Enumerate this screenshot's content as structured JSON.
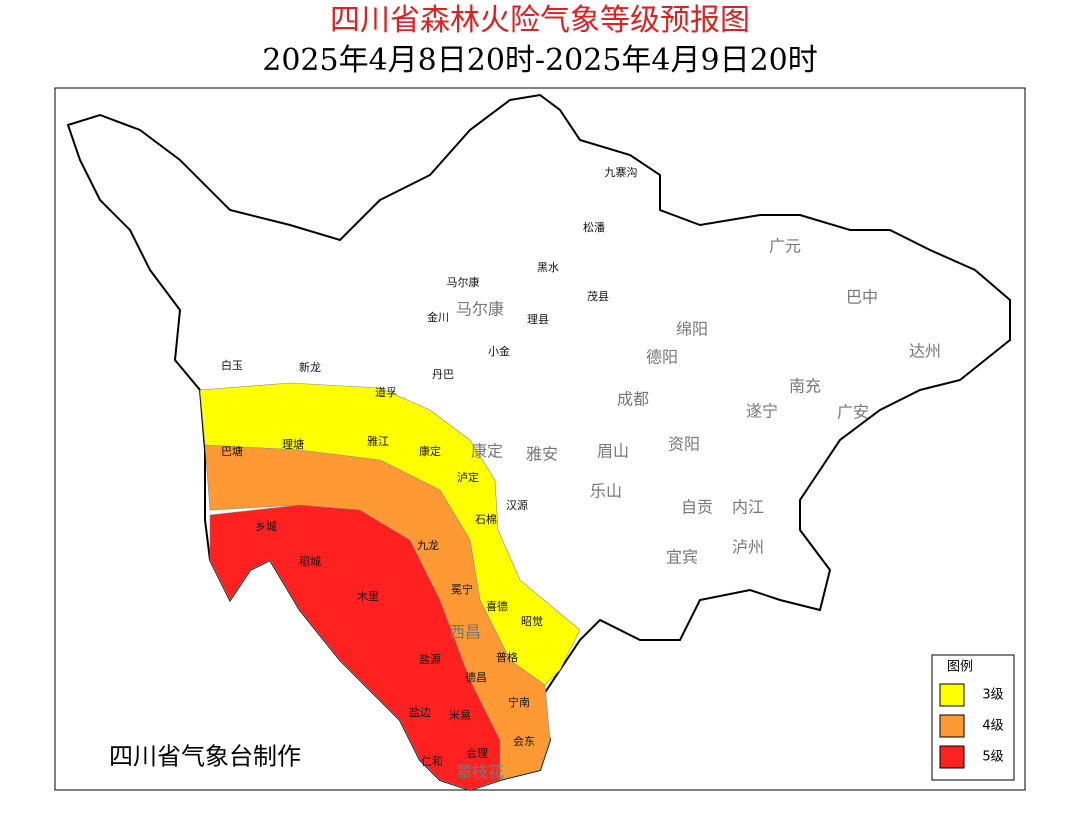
{
  "header": {
    "title": "四川省森林火险气象等级预报图",
    "subtitle": "2025年4月8日20时-2025年4月9日20时"
  },
  "legend": {
    "title": "图例",
    "items": [
      {
        "label": "3级",
        "color": "#ffff00"
      },
      {
        "label": "4级",
        "color": "#ff9933"
      },
      {
        "label": "5级",
        "color": "#ff2020"
      }
    ]
  },
  "cities": [
    "广元",
    "巴中",
    "达州",
    "绵阳",
    "德阳",
    "南充",
    "成都",
    "遂宁",
    "广安",
    "资阳",
    "雅安",
    "眉山",
    "乐山",
    "自贡",
    "内江",
    "宜宾",
    "泸州",
    "马尔康",
    "康定",
    "西昌",
    "攀枝花"
  ],
  "counties": [
    "九寨沟",
    "松潘",
    "马尔康",
    "黑水",
    "茂县",
    "金川",
    "理县",
    "小金",
    "丹巴",
    "道孚",
    "白玉",
    "新龙",
    "巴塘",
    "理塘",
    "雅江",
    "康定",
    "泸定",
    "汉源",
    "石棉",
    "乡城",
    "稻城",
    "九龙",
    "木里",
    "冕宁",
    "喜德",
    "昭觉",
    "普格",
    "盐源",
    "德昌",
    "宁南",
    "盐边",
    "米易",
    "会东",
    "会理",
    "仁和"
  ],
  "credit": "四川省气象台制作"
}
